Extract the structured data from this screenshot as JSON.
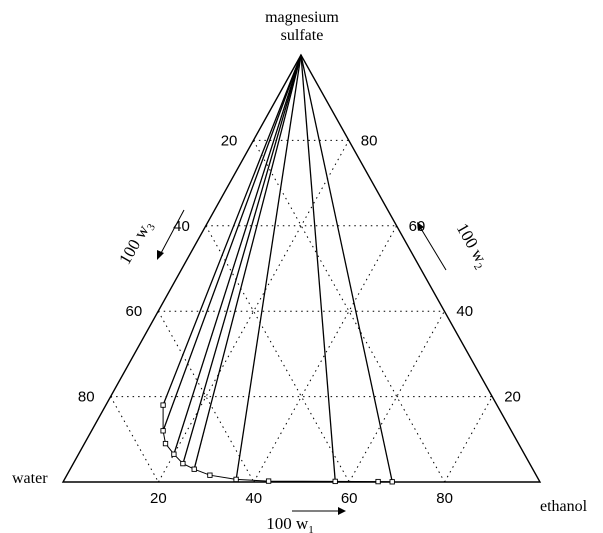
{
  "vertices": {
    "top": "magnesium\nsulfate",
    "left": "water",
    "right": "ethanol"
  },
  "axes": {
    "w1": {
      "label": "100 w",
      "subscript": "1",
      "ticks": [
        "20",
        "40",
        "60",
        "80"
      ]
    },
    "w2": {
      "label": "100 w",
      "subscript": "2",
      "ticks": [
        "80",
        "60",
        "40",
        "20"
      ]
    },
    "w3": {
      "label": "100 w",
      "subscript": "3",
      "ticks": [
        "20",
        "40",
        "60",
        "80"
      ]
    }
  },
  "binodal_points": [
    {
      "w1": 12,
      "w2": 18
    },
    {
      "w1": 15,
      "w2": 12
    },
    {
      "w1": 17,
      "w2": 9
    },
    {
      "w1": 20,
      "w2": 6.5
    },
    {
      "w1": 23,
      "w2": 4.3
    },
    {
      "w1": 26,
      "w2": 3
    },
    {
      "w1": 30,
      "w2": 1.6
    },
    {
      "w1": 36,
      "w2": 0.6
    },
    {
      "w1": 43,
      "w2": 0.2
    },
    {
      "w1": 57,
      "w2": 0.15
    },
    {
      "w1": 66,
      "w2": 0.1
    },
    {
      "w1": 69,
      "w2": 0.05
    }
  ],
  "tie_lines": [
    {
      "w1": 12,
      "w2": 18
    },
    {
      "w1": 15,
      "w2": 12
    },
    {
      "w1": 20,
      "w2": 6.5
    },
    {
      "w1": 23,
      "w2": 4.3
    },
    {
      "w1": 26,
      "w2": 3
    },
    {
      "w1": 36,
      "w2": 0.6
    },
    {
      "w1": 57,
      "w2": 0.15
    },
    {
      "w1": 69,
      "w2": 0.05
    }
  ],
  "grid": true
}
